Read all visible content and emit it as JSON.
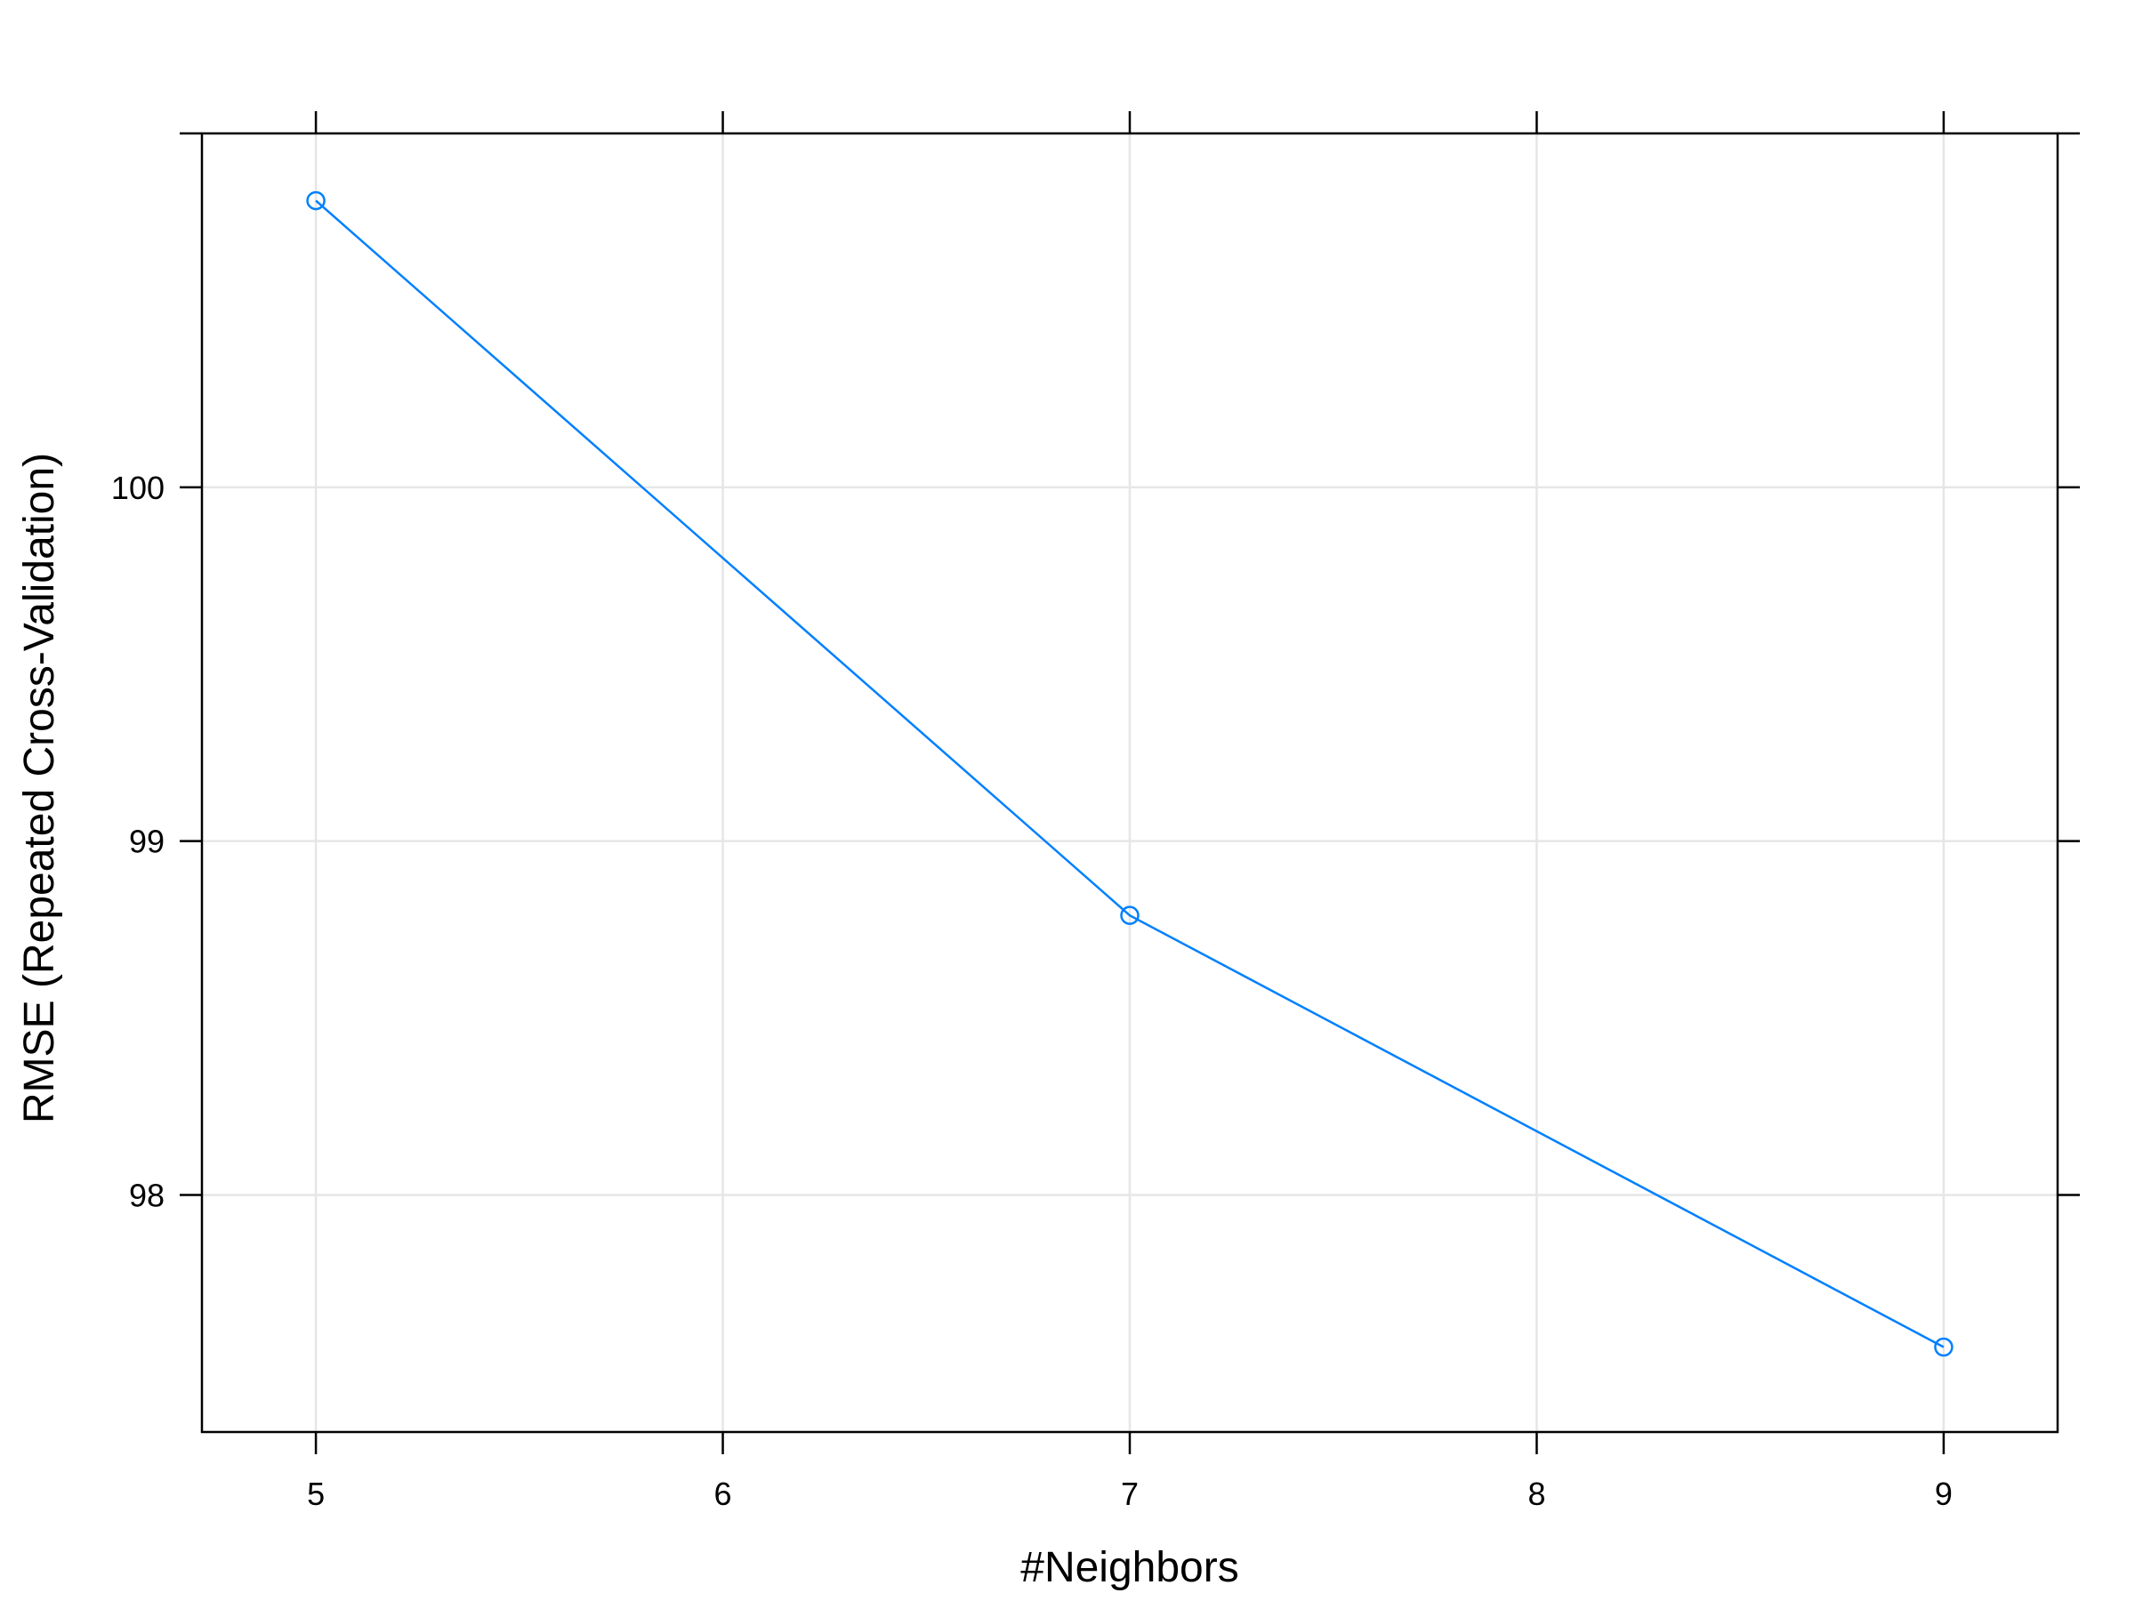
{
  "chart_data": {
    "type": "line",
    "xlabel": "#Neighbors",
    "ylabel": "RMSE (Repeated Cross-Validation)",
    "xlim": [
      4.72,
      9.28
    ],
    "ylim": [
      97.33,
      101.0
    ],
    "x_ticks": [
      "5",
      "6",
      "7",
      "8",
      "9"
    ],
    "y_ticks": [
      "98",
      "99",
      "100"
    ],
    "grid": true,
    "series": [
      {
        "x": [
          5,
          7,
          9
        ],
        "values": [
          100.81,
          98.79,
          97.57
        ]
      }
    ],
    "colors": {
      "series": "#0080ff",
      "grid": "#e6e6e6",
      "frame": "#000000"
    }
  }
}
